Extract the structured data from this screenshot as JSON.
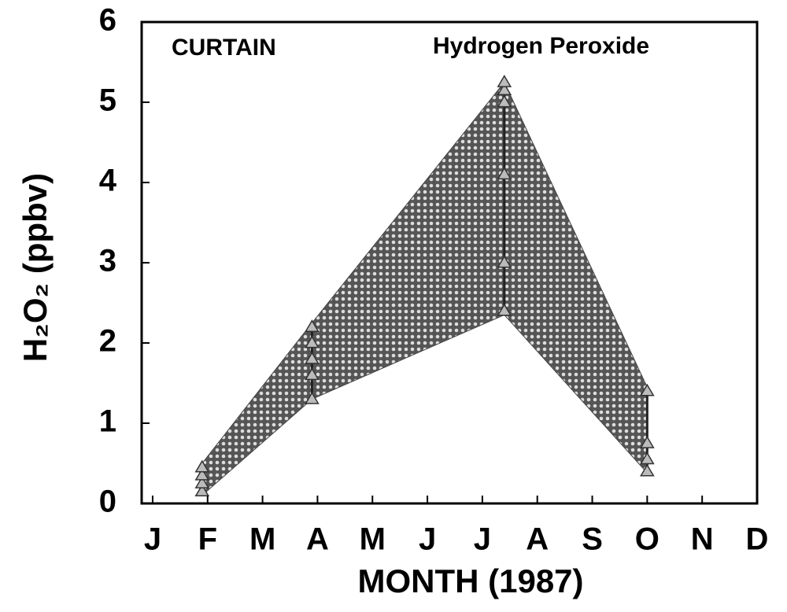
{
  "chart_data": {
    "type": "range",
    "annotations": [
      "CURTAIN",
      "Hydrogen Peroxide"
    ],
    "xlabel": "MONTH (1987)",
    "ylabel": "H₂O₂ (ppbv)",
    "x": [
      0.9,
      2.9,
      6.4,
      9.0
    ],
    "upper": [
      0.5,
      2.25,
      5.25,
      1.45
    ],
    "lower": [
      0.1,
      1.3,
      2.35,
      0.38
    ],
    "points": {
      "x": [
        0.9,
        0.9,
        0.9,
        0.9,
        2.9,
        2.9,
        2.9,
        2.9,
        2.9,
        6.4,
        6.4,
        6.4,
        6.4,
        6.4,
        6.4,
        9.0,
        9.0,
        9.0,
        9.0
      ],
      "y": [
        0.15,
        0.25,
        0.35,
        0.45,
        1.3,
        1.6,
        1.8,
        2.0,
        2.2,
        2.4,
        3.0,
        4.1,
        5.0,
        5.15,
        5.25,
        0.4,
        0.55,
        0.75,
        1.4
      ]
    },
    "xlim": [
      -0.2,
      11
    ],
    "xticks": [
      {
        "value": 0,
        "label": "J"
      },
      {
        "value": 1,
        "label": "F"
      },
      {
        "value": 2,
        "label": "M"
      },
      {
        "value": 3,
        "label": "A"
      },
      {
        "value": 4,
        "label": "M"
      },
      {
        "value": 5,
        "label": "J"
      },
      {
        "value": 6,
        "label": "J"
      },
      {
        "value": 7,
        "label": "A"
      },
      {
        "value": 8,
        "label": "S"
      },
      {
        "value": 9,
        "label": "O"
      },
      {
        "value": 10,
        "label": "N"
      },
      {
        "value": 11,
        "label": "D"
      }
    ],
    "ylim": [
      0,
      6
    ],
    "yticks": [
      0,
      1,
      2,
      3,
      4,
      5,
      6
    ]
  }
}
